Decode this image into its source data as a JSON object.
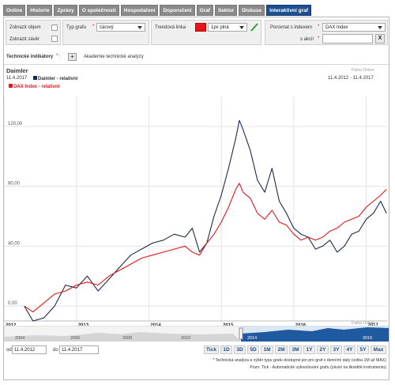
{
  "tabs": [
    {
      "label": "Online"
    },
    {
      "label": "Historie"
    },
    {
      "label": "Zprávy"
    },
    {
      "label": "O společnosti"
    },
    {
      "label": "Hospodaření"
    },
    {
      "label": "Doporučení"
    },
    {
      "label": "Graf"
    },
    {
      "label": "Sektor"
    },
    {
      "label": "Diskuse"
    },
    {
      "label": "Interaktivní graf"
    }
  ],
  "options": {
    "show_volume": "Zobrazit objem",
    "show_close": "Zobrazit závěr",
    "chart_type_label": "Typ grafu",
    "chart_type_value": "čárový",
    "trend_label": "Trendová linka",
    "trend_style_value": "1px plná",
    "trend_color": "#e8141b",
    "compare_index_label": "Porovnat s indexem",
    "compare_index_value": "DAX Index",
    "compare_stock_label": "s akcií",
    "compare_stock_value": "",
    "clear_label": "X"
  },
  "indicators": {
    "label": "Technické indikátory",
    "add_label": "+",
    "academy_link": "Akademie technické analýzy"
  },
  "chart": {
    "title": "Daimler",
    "watermark": "Patria Online",
    "date_left": "11.4.2017",
    "date_right": "11.4.2012 - 11.4.2017",
    "legend": [
      {
        "name": "Daimler - relativní",
        "color": "#1b2a4a"
      },
      {
        "name": "DAX Index - relativní",
        "color": "#e8141b"
      }
    ]
  },
  "chart_data": {
    "type": "line",
    "title": "Daimler",
    "x_ticks": [
      "2012",
      "2013",
      "2014",
      "2015",
      "2016",
      "2017"
    ],
    "y_ticks": [
      "0,00",
      "40,00",
      "80,00",
      "120,00"
    ],
    "ylim": [
      -10,
      140
    ],
    "series": [
      {
        "name": "Daimler - relativní",
        "color": "#1b2a4a",
        "x": [
          2012.28,
          2012.4,
          2012.55,
          2012.7,
          2012.85,
          2013.0,
          2013.15,
          2013.3,
          2013.45,
          2013.6,
          2013.75,
          2013.9,
          2014.05,
          2014.2,
          2014.35,
          2014.5,
          2014.6,
          2014.7,
          2014.8,
          2014.9,
          2015.0,
          2015.1,
          2015.2,
          2015.25,
          2015.3,
          2015.4,
          2015.5,
          2015.6,
          2015.7,
          2015.8,
          2015.9,
          2016.0,
          2016.1,
          2016.2,
          2016.3,
          2016.4,
          2016.5,
          2016.6,
          2016.7,
          2016.8,
          2016.9,
          2017.0,
          2017.1,
          2017.2,
          2017.28
        ],
        "y": [
          0,
          -10,
          -8,
          0,
          14,
          12,
          20,
          10,
          18,
          26,
          34,
          38,
          42,
          44,
          48,
          46,
          52,
          36,
          42,
          60,
          74,
          92,
          112,
          124,
          118,
          104,
          84,
          76,
          92,
          70,
          62,
          52,
          48,
          46,
          38,
          40,
          44,
          36,
          40,
          48,
          50,
          58,
          62,
          70,
          62
        ]
      },
      {
        "name": "DAX Index - relativní",
        "color": "#e8141b",
        "x": [
          2012.28,
          2012.4,
          2012.55,
          2012.7,
          2012.85,
          2013.0,
          2013.15,
          2013.3,
          2013.45,
          2013.6,
          2013.75,
          2013.9,
          2014.05,
          2014.2,
          2014.35,
          2014.5,
          2014.6,
          2014.7,
          2014.8,
          2014.9,
          2015.0,
          2015.1,
          2015.2,
          2015.25,
          2015.3,
          2015.4,
          2015.5,
          2015.6,
          2015.7,
          2015.8,
          2015.9,
          2016.0,
          2016.1,
          2016.2,
          2016.3,
          2016.4,
          2016.5,
          2016.6,
          2016.7,
          2016.8,
          2016.9,
          2017.0,
          2017.1,
          2017.2,
          2017.28
        ],
        "y": [
          0,
          -4,
          2,
          8,
          10,
          14,
          16,
          14,
          20,
          24,
          28,
          32,
          34,
          36,
          38,
          40,
          36,
          34,
          42,
          48,
          56,
          66,
          78,
          82,
          76,
          72,
          62,
          58,
          64,
          56,
          54,
          48,
          44,
          46,
          44,
          46,
          50,
          52,
          56,
          58,
          60,
          66,
          70,
          74,
          78
        ]
      }
    ],
    "navigator_ticks": [
      "2004",
      "2006",
      "2008",
      "2010",
      "2014",
      "2016"
    ]
  },
  "range": {
    "from_label": "od",
    "from_value": "11.4.2012",
    "to_label": "do",
    "to_value": "11.4.2017",
    "zoom": [
      "Tick",
      "1D",
      "3D",
      "5D",
      "1M",
      "2M",
      "3M",
      "1Y",
      "2Y",
      "3Y",
      "4Y",
      "5Y",
      "Max"
    ]
  },
  "notes": {
    "star": "*",
    "line1": "Technická analýza a výběr typu grafu dostupné jen pro graf s denními daty (volba 1M až MAX)",
    "line2": "Pozn: Tick - Automatické vykreslování grafu (závisí na likviditě instrumentu)"
  }
}
